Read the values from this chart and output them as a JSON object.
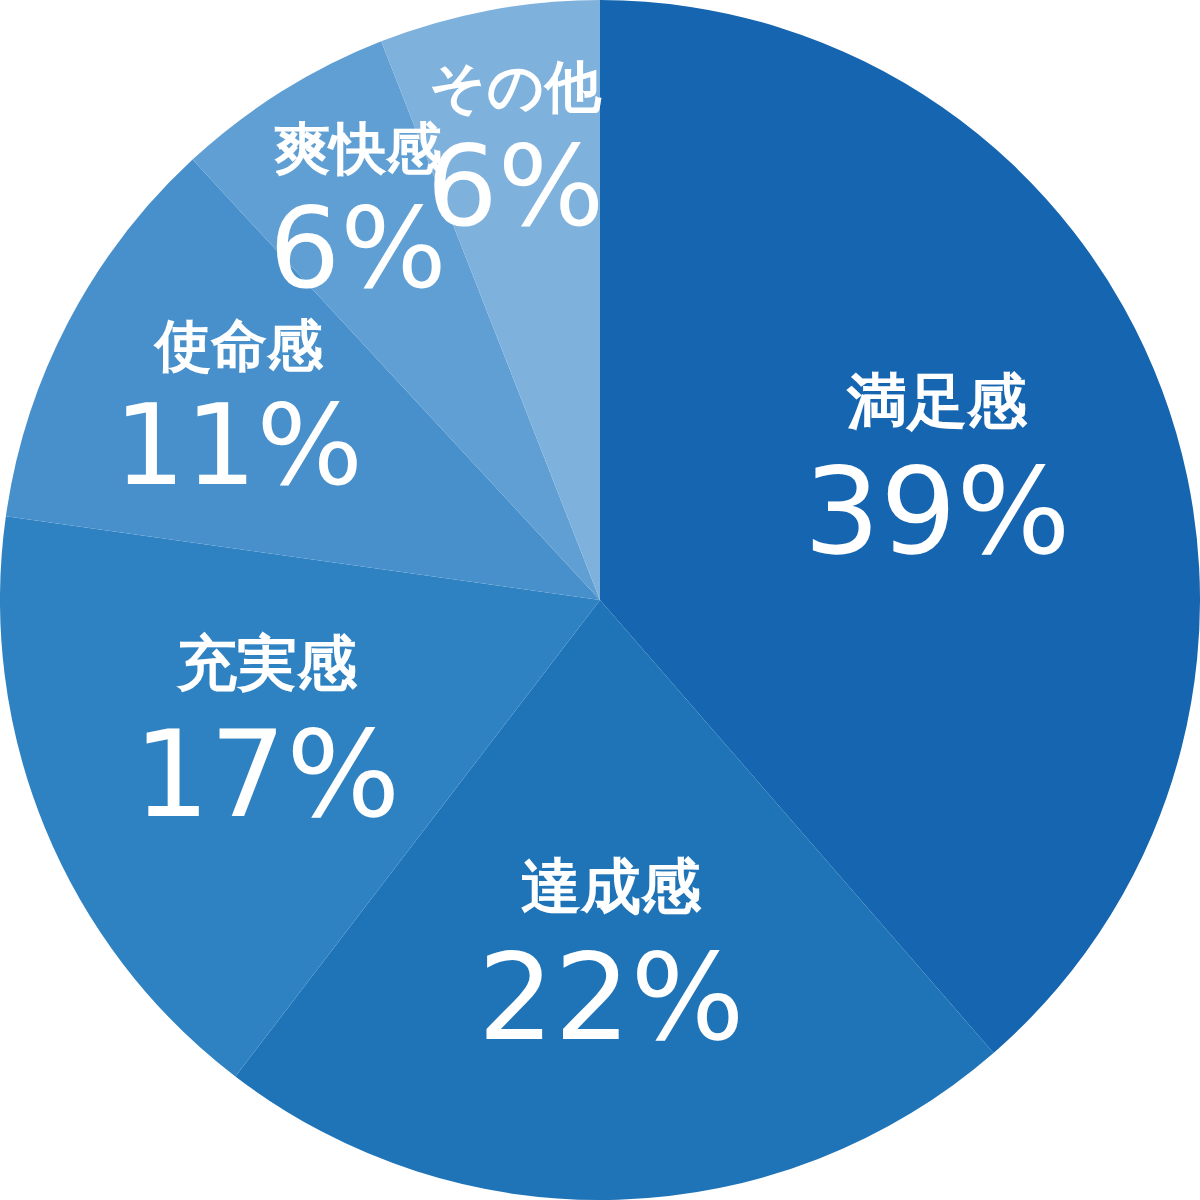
{
  "chart_data": {
    "type": "pie",
    "categories": [
      "満足感",
      "達成感",
      "充実感",
      "使命感",
      "爽快感",
      "その他"
    ],
    "values": [
      39,
      22,
      17,
      11,
      6,
      6
    ],
    "colors": [
      "#1565b0",
      "#1f74b8",
      "#2e82c2",
      "#4890cb",
      "#5f9fd3",
      "#7eb1dc"
    ],
    "value_labels": [
      "39%",
      "22%",
      "17%",
      "11%",
      "6%",
      "6%"
    ],
    "legend": false
  }
}
